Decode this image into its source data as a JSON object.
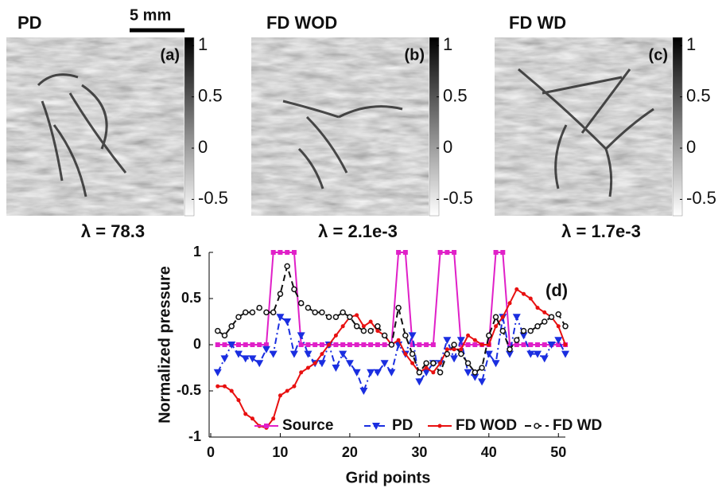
{
  "scale_bar": "5 mm",
  "panels": [
    {
      "title": "PD",
      "tag": "(a)",
      "lambda": "λ = 78.3",
      "colorbar": {
        "lim": [
          -0.66,
          1.08
        ],
        "ticks": [
          1,
          0.5,
          0,
          -0.5
        ]
      }
    },
    {
      "title": "FD WOD",
      "tag": "(b)",
      "lambda": "λ = 2.1e-3",
      "colorbar": {
        "lim": [
          -0.66,
          1.08
        ],
        "ticks": [
          1,
          0.5,
          0,
          -0.5
        ]
      }
    },
    {
      "title": "FD WD",
      "tag": "(c)",
      "lambda": "λ = 1.7e-3",
      "colorbar": {
        "lim": [
          -0.66,
          1.08
        ],
        "ticks": [
          1,
          0.5,
          0,
          -0.5
        ]
      }
    }
  ],
  "chart_data": {
    "type": "line",
    "annotation": "(d)",
    "x_label": "Grid points",
    "y_label": "Normalized pressure",
    "x": [
      1,
      2,
      3,
      4,
      5,
      6,
      7,
      8,
      9,
      10,
      11,
      12,
      13,
      14,
      15,
      16,
      17,
      18,
      19,
      20,
      21,
      22,
      23,
      24,
      25,
      26,
      27,
      28,
      29,
      30,
      31,
      32,
      33,
      34,
      35,
      36,
      37,
      38,
      39,
      40,
      41,
      42,
      43,
      44,
      45,
      46,
      47,
      48,
      49,
      50,
      51
    ],
    "xlim": [
      0,
      51
    ],
    "ylim": [
      -1,
      1
    ],
    "xticks": [
      0,
      10,
      20,
      30,
      40,
      50
    ],
    "yticks": [
      1,
      0.5,
      0,
      -0.5,
      -1
    ],
    "series": [
      {
        "name": "Source",
        "color": "#e020c8",
        "marker": "square",
        "dash": "solid",
        "values": [
          0,
          0,
          0,
          0,
          0,
          0,
          0,
          0,
          1,
          1,
          1,
          1,
          0,
          0,
          0,
          0,
          0,
          0,
          0,
          0,
          0,
          0,
          0,
          0,
          0,
          0,
          1,
          1,
          0,
          0,
          0,
          0,
          1,
          1,
          1,
          0,
          0,
          0,
          0,
          0,
          1,
          1,
          0,
          0,
          0,
          0,
          0,
          0,
          0,
          0,
          0
        ]
      },
      {
        "name": "PD",
        "color": "#1a2ee0",
        "marker": "triangle",
        "dash": "dashdot",
        "values": [
          -0.3,
          -0.15,
          0,
          -0.1,
          -0.15,
          -0.15,
          -0.2,
          -0.05,
          -0.1,
          0.3,
          0.25,
          -0.1,
          0.1,
          -0.1,
          -0.2,
          -0.2,
          0,
          -0.25,
          -0.1,
          -0.2,
          -0.3,
          -0.5,
          -0.3,
          -0.3,
          -0.2,
          -0.3,
          0,
          -0.1,
          0.1,
          -0.4,
          -0.3,
          -0.2,
          -0.2,
          0.05,
          -0.15,
          0.05,
          -0.3,
          -0.35,
          -0.4,
          -0.1,
          -0.2,
          0.3,
          -0.1,
          0.3,
          0.1,
          -0.1,
          -0.1,
          -0.15,
          0,
          0.05,
          -0.1
        ]
      },
      {
        "name": "FD WOD",
        "color": "#e81010",
        "marker": "dot",
        "dash": "solid",
        "values": [
          -0.45,
          -0.45,
          -0.5,
          -0.6,
          -0.75,
          -0.8,
          -0.88,
          -0.9,
          -0.8,
          -0.55,
          -0.5,
          -0.45,
          -0.3,
          -0.25,
          -0.2,
          -0.1,
          0,
          0.1,
          0.2,
          0.3,
          0.32,
          0.2,
          0.25,
          0.15,
          0.1,
          0,
          0.05,
          -0.1,
          -0.2,
          -0.3,
          -0.25,
          -0.3,
          -0.2,
          -0.05,
          -0.05,
          -0.05,
          0.1,
          0.05,
          0,
          0,
          0.2,
          0.3,
          0.45,
          0.6,
          0.55,
          0.5,
          0.4,
          0.35,
          0.3,
          0.2,
          0
        ]
      },
      {
        "name": "FD WD",
        "color": "#111111",
        "marker": "circle",
        "dash": "dashed",
        "values": [
          0.15,
          0.1,
          0.2,
          0.3,
          0.35,
          0.35,
          0.4,
          0.35,
          0.35,
          0.55,
          0.85,
          0.6,
          0.45,
          0.4,
          0.35,
          0.35,
          0.3,
          0.3,
          0.35,
          0.3,
          0.2,
          0.15,
          0.15,
          0.2,
          0.1,
          0,
          0.4,
          0.1,
          -0.1,
          -0.3,
          -0.2,
          -0.2,
          -0.3,
          -0.1,
          0,
          -0.1,
          -0.2,
          -0.3,
          -0.25,
          0.1,
          0.3,
          0.15,
          -0.05,
          0.05,
          0.15,
          0.15,
          0.2,
          0.25,
          0.3,
          0.33,
          0.2
        ]
      }
    ]
  }
}
